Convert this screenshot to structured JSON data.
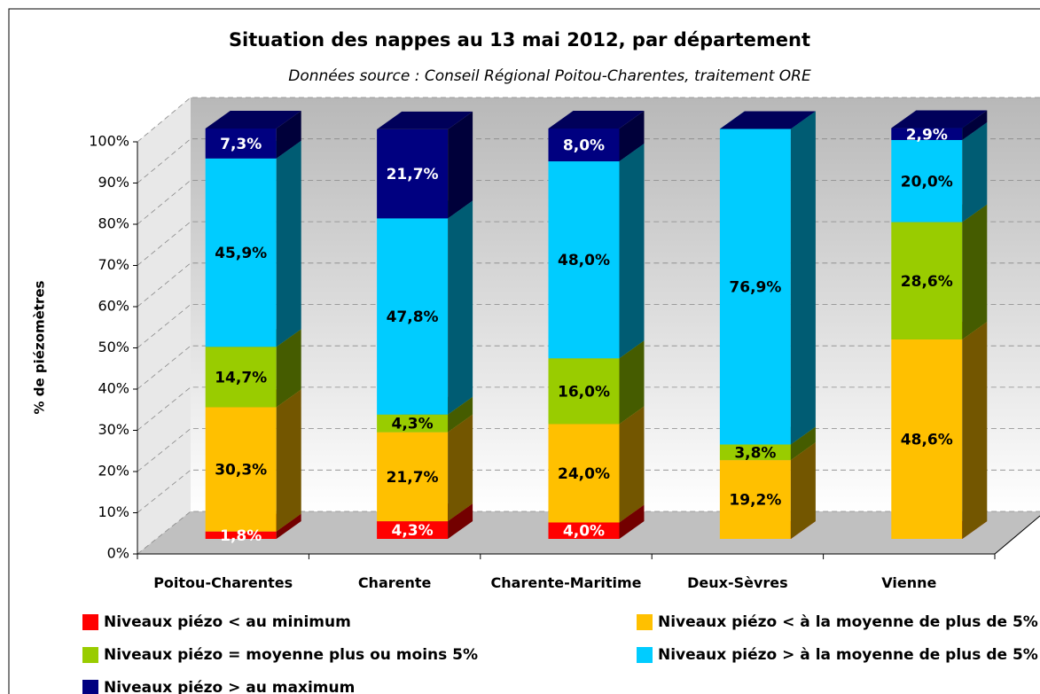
{
  "chart_data": {
    "type": "bar3d_stacked",
    "title": "Situation des nappes au 13 mai 2012, par département",
    "subtitle": "Données source : Conseil Régional Poitou-Charentes, traitement ORE",
    "y_label": "% de piézomètres",
    "categories": [
      "Poitou-Charentes",
      "Charente",
      "Charente-Maritime",
      "Deux-Sèvres",
      "Vienne"
    ],
    "ylim": [
      0,
      100
    ],
    "yticks": [
      {
        "value": 0,
        "label": "0%"
      },
      {
        "value": 10,
        "label": "10%"
      },
      {
        "value": 20,
        "label": "20%"
      },
      {
        "value": 30,
        "label": "30%"
      },
      {
        "value": 40,
        "label": "40%"
      },
      {
        "value": 50,
        "label": "50%"
      },
      {
        "value": 60,
        "label": "60%"
      },
      {
        "value": 70,
        "label": "70%"
      },
      {
        "value": 80,
        "label": "80%"
      },
      {
        "value": 90,
        "label": "90%"
      },
      {
        "value": 100,
        "label": "100%"
      }
    ],
    "grid": true,
    "series": [
      {
        "name": "Niveaux piézo < au minimum",
        "color": "#ff0000",
        "values": [
          1.8,
          4.3,
          4.0,
          0,
          0
        ],
        "value_labels": [
          "1,8%",
          "4,3%",
          "4,0%",
          null,
          null
        ]
      },
      {
        "name": "Niveaux piézo < à la moyenne de plus de 5%",
        "color": "#ffc000",
        "values": [
          30.3,
          21.7,
          24.0,
          19.2,
          48.6
        ],
        "value_labels": [
          "30,3%",
          "21,7%",
          "24,0%",
          "19,2%",
          "48,6%"
        ]
      },
      {
        "name": "Niveaux piézo = moyenne plus ou moins 5%",
        "color": "#99cc00",
        "values": [
          14.7,
          4.3,
          16.0,
          3.8,
          28.6
        ],
        "value_labels": [
          "14,7%",
          "4,3%",
          "16,0%",
          "3,8%",
          "28,6%"
        ]
      },
      {
        "name": "Niveaux piézo > à la moyenne de plus de 5%",
        "color": "#00ccff",
        "values": [
          45.9,
          47.8,
          48.0,
          76.9,
          20.0
        ],
        "value_labels": [
          "45,9%",
          "47,8%",
          "48,0%",
          "76,9%",
          "20,0%"
        ]
      },
      {
        "name": "Niveaux piézo > au maximum",
        "color": "#000080",
        "values": [
          7.3,
          21.7,
          8.0,
          0,
          2.9
        ],
        "value_labels": [
          "7,3%",
          "21,7%",
          "8,0%",
          null,
          "2,9%"
        ]
      }
    ]
  }
}
